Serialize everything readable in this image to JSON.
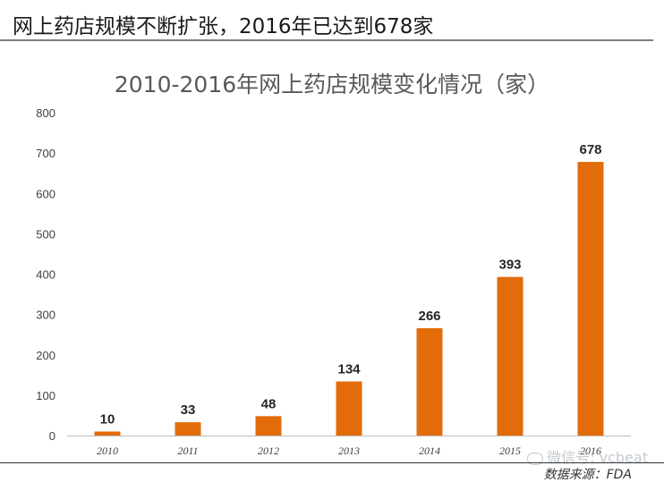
{
  "headline": "网上药店规模不断扩张，2016年已达到678家",
  "source": "数据来源：FDA",
  "watermark": "微信号: vcbeat",
  "colors": {
    "bar": "#E36C0A",
    "axis": "#bfbfbf",
    "label": "#404040"
  },
  "chart_data": {
    "type": "bar",
    "title": "2010-2016年网上药店规模变化情况（家）",
    "categories": [
      "2010",
      "2011",
      "2012",
      "2013",
      "2014",
      "2015",
      "2016"
    ],
    "values": [
      10,
      33,
      48,
      134,
      266,
      393,
      678
    ],
    "yticks": [
      0,
      100,
      200,
      300,
      400,
      500,
      600,
      700,
      800
    ],
    "ylim": [
      0,
      800
    ],
    "grid": false,
    "legend": "none"
  }
}
